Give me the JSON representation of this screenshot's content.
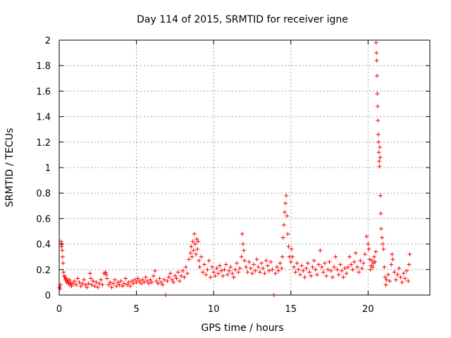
{
  "chart_data": {
    "type": "scatter",
    "title": "Day 114 of 2015, SRMTID for receiver igne",
    "xlabel": "GPS time / hours",
    "ylabel": "SRMTID / TECUs",
    "xlim": [
      0,
      24
    ],
    "ylim": [
      0,
      2
    ],
    "xticks": [
      0,
      5,
      10,
      15,
      20
    ],
    "yticks": [
      0,
      0.2,
      0.4,
      0.6,
      0.8,
      1,
      1.2,
      1.4,
      1.6,
      1.8,
      2
    ],
    "xtick_labels": [
      "0",
      "5",
      "10",
      "15",
      "20"
    ],
    "ytick_labels": [
      "0",
      "0.2",
      "0.4",
      "0.6",
      "0.8",
      "1",
      "1.2",
      "1.4",
      "1.6",
      "1.8",
      "2"
    ],
    "grid": true,
    "marker": "plus",
    "color": "#ff0000",
    "series": [
      {
        "points": [
          [
            0.02,
            0.06
          ],
          [
            0.05,
            0.05
          ],
          [
            0.08,
            0.08
          ],
          [
            0.12,
            0.42
          ],
          [
            0.15,
            0.38
          ],
          [
            0.18,
            0.4
          ],
          [
            0.2,
            0.35
          ],
          [
            0.22,
            0.3
          ],
          [
            0.25,
            0.25
          ],
          [
            0.28,
            0.18
          ],
          [
            0.32,
            0.15
          ],
          [
            0.36,
            0.14
          ],
          [
            0.4,
            0.12
          ],
          [
            0.45,
            0.13
          ],
          [
            0.5,
            0.1
          ],
          [
            0.55,
            0.11
          ],
          [
            0.6,
            0.09
          ],
          [
            0.65,
            0.12
          ],
          [
            0.7,
            0.08
          ],
          [
            0.75,
            0.1
          ],
          [
            0.8,
            0.07
          ],
          [
            0.9,
            0.09
          ],
          [
            1.0,
            0.11
          ],
          [
            1.1,
            0.08
          ],
          [
            1.2,
            0.13
          ],
          [
            1.3,
            0.1
          ],
          [
            1.4,
            0.07
          ],
          [
            1.5,
            0.09
          ],
          [
            1.6,
            0.12
          ],
          [
            1.7,
            0.08
          ],
          [
            1.8,
            0.06
          ],
          [
            1.9,
            0.09
          ],
          [
            2.0,
            0.17
          ],
          [
            2.05,
            0.13
          ],
          [
            2.1,
            0.08
          ],
          [
            2.2,
            0.11
          ],
          [
            2.3,
            0.07
          ],
          [
            2.4,
            0.1
          ],
          [
            2.5,
            0.06
          ],
          [
            2.6,
            0.09
          ],
          [
            2.7,
            0.12
          ],
          [
            2.8,
            0.08
          ],
          [
            2.9,
            0.17
          ],
          [
            3.0,
            0.18
          ],
          [
            3.05,
            0.16
          ],
          [
            3.1,
            0.13
          ],
          [
            3.2,
            0.08
          ],
          [
            3.3,
            0.1
          ],
          [
            3.4,
            0.06
          ],
          [
            3.5,
            0.09
          ],
          [
            3.6,
            0.12
          ],
          [
            3.7,
            0.07
          ],
          [
            3.8,
            0.1
          ],
          [
            3.9,
            0.08
          ],
          [
            4.0,
            0.11
          ],
          [
            4.1,
            0.07
          ],
          [
            4.2,
            0.09
          ],
          [
            4.3,
            0.13
          ],
          [
            4.4,
            0.08
          ],
          [
            4.5,
            0.1
          ],
          [
            4.6,
            0.07
          ],
          [
            4.7,
            0.11
          ],
          [
            4.8,
            0.09
          ],
          [
            4.9,
            0.12
          ],
          [
            5.0,
            0.1
          ],
          [
            5.1,
            0.13
          ],
          [
            5.2,
            0.11
          ],
          [
            5.3,
            0.09
          ],
          [
            5.4,
            0.12
          ],
          [
            5.5,
            0.1
          ],
          [
            5.6,
            0.14
          ],
          [
            5.7,
            0.11
          ],
          [
            5.8,
            0.09
          ],
          [
            5.9,
            0.12
          ],
          [
            6.0,
            0.1
          ],
          [
            6.1,
            0.15
          ],
          [
            6.2,
            0.19
          ],
          [
            6.3,
            0.11
          ],
          [
            6.4,
            0.09
          ],
          [
            6.5,
            0.13
          ],
          [
            6.6,
            0.1
          ],
          [
            6.7,
            0.08
          ],
          [
            6.8,
            0.12
          ],
          [
            6.9,
            0.0
          ],
          [
            7.0,
            0.11
          ],
          [
            7.1,
            0.14
          ],
          [
            7.2,
            0.17
          ],
          [
            7.3,
            0.12
          ],
          [
            7.4,
            0.1
          ],
          [
            7.5,
            0.15
          ],
          [
            7.6,
            0.13
          ],
          [
            7.7,
            0.18
          ],
          [
            7.8,
            0.11
          ],
          [
            7.9,
            0.15
          ],
          [
            8.0,
            0.19
          ],
          [
            8.1,
            0.14
          ],
          [
            8.2,
            0.22
          ],
          [
            8.3,
            0.17
          ],
          [
            8.4,
            0.28
          ],
          [
            8.5,
            0.33
          ],
          [
            8.55,
            0.38
          ],
          [
            8.6,
            0.3
          ],
          [
            8.65,
            0.42
          ],
          [
            8.7,
            0.35
          ],
          [
            8.75,
            0.48
          ],
          [
            8.8,
            0.4
          ],
          [
            8.85,
            0.32
          ],
          [
            8.9,
            0.44
          ],
          [
            8.95,
            0.36
          ],
          [
            9.0,
            0.42
          ],
          [
            9.05,
            0.27
          ],
          [
            9.1,
            0.22
          ],
          [
            9.2,
            0.3
          ],
          [
            9.3,
            0.18
          ],
          [
            9.4,
            0.24
          ],
          [
            9.5,
            0.16
          ],
          [
            9.6,
            0.2
          ],
          [
            9.7,
            0.27
          ],
          [
            9.8,
            0.14
          ],
          [
            9.9,
            0.22
          ],
          [
            10.0,
            0.18
          ],
          [
            10.1,
            0.15
          ],
          [
            10.2,
            0.21
          ],
          [
            10.3,
            0.17
          ],
          [
            10.4,
            0.23
          ],
          [
            10.5,
            0.19
          ],
          [
            10.6,
            0.15
          ],
          [
            10.7,
            0.2
          ],
          [
            10.8,
            0.24
          ],
          [
            10.9,
            0.16
          ],
          [
            11.0,
            0.19
          ],
          [
            11.1,
            0.22
          ],
          [
            11.2,
            0.17
          ],
          [
            11.3,
            0.14
          ],
          [
            11.4,
            0.2
          ],
          [
            11.5,
            0.25
          ],
          [
            11.6,
            0.18
          ],
          [
            11.7,
            0.21
          ],
          [
            11.8,
            0.3
          ],
          [
            11.85,
            0.48
          ],
          [
            11.9,
            0.4
          ],
          [
            11.95,
            0.35
          ],
          [
            12.0,
            0.27
          ],
          [
            12.1,
            0.22
          ],
          [
            12.2,
            0.18
          ],
          [
            12.3,
            0.26
          ],
          [
            12.4,
            0.21
          ],
          [
            12.5,
            0.17
          ],
          [
            12.6,
            0.24
          ],
          [
            12.7,
            0.19
          ],
          [
            12.8,
            0.28
          ],
          [
            12.9,
            0.22
          ],
          [
            13.0,
            0.18
          ],
          [
            13.1,
            0.25
          ],
          [
            13.2,
            0.21
          ],
          [
            13.3,
            0.17
          ],
          [
            13.4,
            0.27
          ],
          [
            13.5,
            0.23
          ],
          [
            13.6,
            0.19
          ],
          [
            13.7,
            0.26
          ],
          [
            13.8,
            0.2
          ],
          [
            13.9,
            0.0
          ],
          [
            14.0,
            0.17
          ],
          [
            14.1,
            0.22
          ],
          [
            14.2,
            0.19
          ],
          [
            14.3,
            0.25
          ],
          [
            14.4,
            0.21
          ],
          [
            14.45,
            0.3
          ],
          [
            14.5,
            0.45
          ],
          [
            14.55,
            0.55
          ],
          [
            14.6,
            0.65
          ],
          [
            14.65,
            0.72
          ],
          [
            14.7,
            0.78
          ],
          [
            14.75,
            0.62
          ],
          [
            14.8,
            0.48
          ],
          [
            14.85,
            0.38
          ],
          [
            14.9,
            0.3
          ],
          [
            15.0,
            0.26
          ],
          [
            15.05,
            0.36
          ],
          [
            15.1,
            0.3
          ],
          [
            15.2,
            0.22
          ],
          [
            15.3,
            0.18
          ],
          [
            15.4,
            0.25
          ],
          [
            15.5,
            0.2
          ],
          [
            15.6,
            0.16
          ],
          [
            15.7,
            0.23
          ],
          [
            15.8,
            0.19
          ],
          [
            15.9,
            0.14
          ],
          [
            16.0,
            0.21
          ],
          [
            16.1,
            0.25
          ],
          [
            16.2,
            0.18
          ],
          [
            16.3,
            0.15
          ],
          [
            16.4,
            0.22
          ],
          [
            16.5,
            0.27
          ],
          [
            16.6,
            0.2
          ],
          [
            16.7,
            0.16
          ],
          [
            16.8,
            0.24
          ],
          [
            16.9,
            0.35
          ],
          [
            17.0,
            0.22
          ],
          [
            17.1,
            0.18
          ],
          [
            17.2,
            0.25
          ],
          [
            17.3,
            0.15
          ],
          [
            17.4,
            0.2
          ],
          [
            17.5,
            0.26
          ],
          [
            17.6,
            0.19
          ],
          [
            17.7,
            0.14
          ],
          [
            17.8,
            0.22
          ],
          [
            17.9,
            0.3
          ],
          [
            18.0,
            0.2
          ],
          [
            18.1,
            0.16
          ],
          [
            18.2,
            0.24
          ],
          [
            18.3,
            0.19
          ],
          [
            18.4,
            0.14
          ],
          [
            18.5,
            0.21
          ],
          [
            18.6,
            0.17
          ],
          [
            18.7,
            0.22
          ],
          [
            18.8,
            0.3
          ],
          [
            18.9,
            0.24
          ],
          [
            19.0,
            0.2
          ],
          [
            19.1,
            0.26
          ],
          [
            19.2,
            0.33
          ],
          [
            19.3,
            0.22
          ],
          [
            19.4,
            0.18
          ],
          [
            19.5,
            0.27
          ],
          [
            19.6,
            0.21
          ],
          [
            19.7,
            0.25
          ],
          [
            19.8,
            0.32
          ],
          [
            19.9,
            0.46
          ],
          [
            20.0,
            0.4
          ],
          [
            20.05,
            0.36
          ],
          [
            20.1,
            0.28
          ],
          [
            20.15,
            0.2
          ],
          [
            20.2,
            0.23
          ],
          [
            20.25,
            0.27
          ],
          [
            20.3,
            0.22
          ],
          [
            20.35,
            0.25
          ],
          [
            20.4,
            0.3
          ],
          [
            20.45,
            0.26
          ],
          [
            20.5,
            0.34
          ],
          [
            20.52,
            1.98
          ],
          [
            20.54,
            1.9
          ],
          [
            20.56,
            1.84
          ],
          [
            20.58,
            1.72
          ],
          [
            20.6,
            1.58
          ],
          [
            20.62,
            1.48
          ],
          [
            20.64,
            1.37
          ],
          [
            20.66,
            1.26
          ],
          [
            20.68,
            1.2
          ],
          [
            20.7,
            1.12
          ],
          [
            20.72,
            1.05
          ],
          [
            20.74,
            1.01
          ],
          [
            20.76,
            1.16
          ],
          [
            20.78,
            1.08
          ],
          [
            20.8,
            0.78
          ],
          [
            20.82,
            0.64
          ],
          [
            20.85,
            0.52
          ],
          [
            20.9,
            0.45
          ],
          [
            20.95,
            0.4
          ],
          [
            21.0,
            0.36
          ],
          [
            21.05,
            0.22
          ],
          [
            21.1,
            0.14
          ],
          [
            21.15,
            0.08
          ],
          [
            21.2,
            0.12
          ],
          [
            21.3,
            0.16
          ],
          [
            21.4,
            0.11
          ],
          [
            21.5,
            0.24
          ],
          [
            21.55,
            0.32
          ],
          [
            21.6,
            0.28
          ],
          [
            21.7,
            0.18
          ],
          [
            21.8,
            0.12
          ],
          [
            21.9,
            0.16
          ],
          [
            22.0,
            0.21
          ],
          [
            22.1,
            0.14
          ],
          [
            22.2,
            0.1
          ],
          [
            22.3,
            0.17
          ],
          [
            22.4,
            0.13
          ],
          [
            22.5,
            0.19
          ],
          [
            22.6,
            0.11
          ],
          [
            22.65,
            0.24
          ],
          [
            22.7,
            0.32
          ]
        ]
      }
    ]
  }
}
